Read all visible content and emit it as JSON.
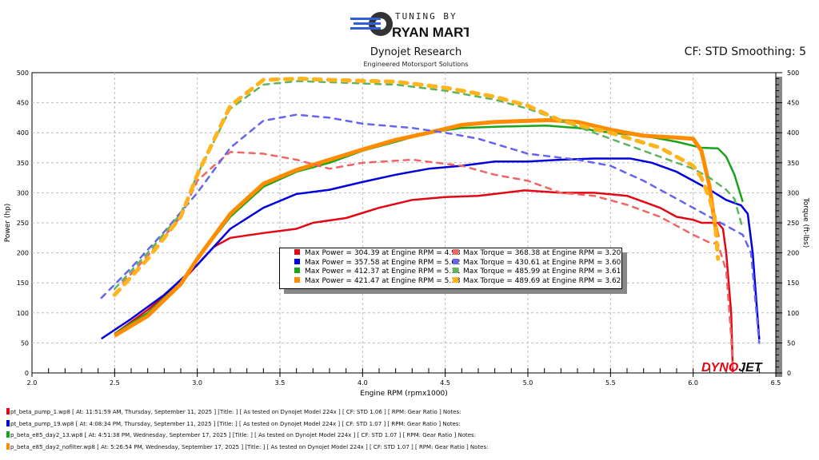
{
  "header": {
    "logo_line1": "TUNING BY",
    "logo_line2": "RYAN MARTIN",
    "company": "Dynojet Research",
    "tagline": "Engineered Motorsport Solutions",
    "settings": "CF: STD Smoothing: 5",
    "watermark": "DYNOJET"
  },
  "chart_data": {
    "type": "line",
    "xlabel": "Engine RPM (rpmx1000)",
    "ylabel": "Power (hp)",
    "y2label": "Torque (ft-lbs)",
    "xlim": [
      2.0,
      6.5
    ],
    "ylim": [
      0,
      500
    ],
    "y2lim": [
      0,
      500
    ],
    "xticks": [
      "2.0",
      "2.5",
      "3.0",
      "3.5",
      "4.0",
      "4.5",
      "5.0",
      "5.5",
      "6.0",
      "6.5"
    ],
    "yticks": [
      "0",
      "50",
      "100",
      "150",
      "200",
      "250",
      "300",
      "350",
      "400",
      "450",
      "500"
    ],
    "grid": true,
    "legend_position": "center",
    "series": [
      {
        "kind": "power",
        "color": "#e30613",
        "x": [
          2.5,
          2.7,
          2.9,
          3.0,
          3.1,
          3.2,
          3.4,
          3.6,
          3.7,
          3.9,
          4.1,
          4.3,
          4.5,
          4.7,
          4.98,
          5.2,
          5.4,
          5.6,
          5.7,
          5.8,
          5.9,
          6.0,
          6.05,
          6.1,
          6.15,
          6.18,
          6.2,
          6.23,
          6.24
        ],
        "y": [
          65,
          105,
          150,
          180,
          210,
          225,
          233,
          240,
          250,
          258,
          275,
          288,
          293,
          295,
          304,
          300,
          300,
          295,
          285,
          275,
          260,
          255,
          250,
          250,
          250,
          240,
          200,
          100,
          0
        ]
      },
      {
        "kind": "power",
        "color": "#0000dd",
        "x": [
          2.42,
          2.6,
          2.8,
          3.0,
          3.2,
          3.4,
          3.6,
          3.8,
          4.0,
          4.2,
          4.4,
          4.6,
          4.8,
          5.0,
          5.2,
          5.4,
          5.62,
          5.75,
          5.9,
          6.0,
          6.1,
          6.2,
          6.29,
          6.33,
          6.36,
          6.4
        ],
        "y": [
          57,
          90,
          130,
          180,
          240,
          275,
          298,
          305,
          318,
          330,
          340,
          345,
          352,
          352,
          355,
          357,
          357,
          350,
          335,
          320,
          305,
          288,
          279,
          265,
          200,
          56
        ]
      },
      {
        "kind": "power",
        "color": "#19a519",
        "x": [
          2.5,
          2.7,
          2.9,
          3.0,
          3.2,
          3.4,
          3.6,
          3.8,
          4.0,
          4.2,
          4.4,
          4.6,
          4.8,
          5.11,
          5.3,
          5.5,
          5.7,
          5.9,
          6.05,
          6.15,
          6.2,
          6.25,
          6.3
        ],
        "y": [
          65,
          100,
          150,
          190,
          260,
          310,
          335,
          350,
          370,
          385,
          400,
          408,
          410,
          412,
          408,
          400,
          395,
          385,
          375,
          374,
          360,
          330,
          285
        ]
      },
      {
        "kind": "power",
        "color": "#ff8c00",
        "x": [
          2.5,
          2.7,
          2.9,
          3.0,
          3.2,
          3.4,
          3.6,
          3.8,
          4.0,
          4.2,
          4.4,
          4.6,
          4.8,
          5.13,
          5.3,
          5.5,
          5.7,
          5.9,
          6.0,
          6.05,
          6.1,
          6.13,
          6.15
        ],
        "y": [
          62,
          95,
          148,
          190,
          265,
          315,
          338,
          355,
          372,
          388,
          400,
          413,
          418,
          421,
          418,
          405,
          395,
          392,
          390,
          370,
          310,
          250,
          226
        ]
      },
      {
        "kind": "torque",
        "color": "#f06464",
        "x": [
          2.55,
          2.7,
          2.9,
          3.0,
          3.1,
          3.2,
          3.4,
          3.6,
          3.8,
          4.0,
          4.3,
          4.6,
          4.8,
          5.0,
          5.2,
          5.4,
          5.6,
          5.8,
          6.0,
          6.1,
          6.15,
          6.2,
          6.23,
          6.24
        ],
        "y": [
          150,
          195,
          260,
          320,
          345,
          368,
          365,
          355,
          340,
          350,
          355,
          345,
          330,
          320,
          300,
          295,
          280,
          260,
          230,
          217,
          215,
          170,
          60,
          0
        ]
      },
      {
        "kind": "torque",
        "color": "#6464f0",
        "x": [
          2.42,
          2.6,
          2.8,
          3.0,
          3.2,
          3.4,
          3.6,
          3.8,
          4.0,
          4.3,
          4.5,
          4.7,
          5.0,
          5.3,
          5.5,
          5.7,
          5.9,
          6.1,
          6.3,
          6.35,
          6.4
        ],
        "y": [
          125,
          175,
          235,
          300,
          375,
          420,
          430,
          425,
          415,
          408,
          400,
          390,
          365,
          355,
          345,
          320,
          290,
          260,
          230,
          200,
          50
        ]
      },
      {
        "kind": "torque",
        "color": "#5fb45f",
        "x": [
          2.5,
          2.7,
          2.9,
          3.0,
          3.2,
          3.4,
          3.61,
          3.8,
          4.2,
          4.5,
          4.8,
          5.0,
          5.3,
          5.5,
          5.8,
          6.0,
          6.1,
          6.2,
          6.25,
          6.3
        ],
        "y": [
          140,
          200,
          265,
          330,
          440,
          480,
          486,
          484,
          480,
          470,
          455,
          440,
          410,
          390,
          360,
          340,
          325,
          305,
          290,
          240
        ]
      },
      {
        "kind": "torque",
        "color": "#ffb41e",
        "x": [
          2.5,
          2.7,
          2.9,
          3.0,
          3.2,
          3.4,
          3.62,
          3.8,
          4.2,
          4.5,
          4.8,
          5.0,
          5.2,
          5.5,
          5.8,
          6.0,
          6.05,
          6.1,
          6.13,
          6.15
        ],
        "y": [
          130,
          190,
          260,
          330,
          445,
          488,
          490,
          488,
          485,
          475,
          460,
          445,
          420,
          400,
          375,
          345,
          325,
          290,
          260,
          190
        ]
      }
    ],
    "legend": [
      {
        "color": "#e30613",
        "text": "Max Power = 304.39 at Engine RPM = 4.98"
      },
      {
        "color": "#0000dd",
        "text": "Max Power = 357.58 at Engine RPM = 5.62"
      },
      {
        "color": "#19a519",
        "text": "Max Power = 412.37 at Engine RPM = 5.11"
      },
      {
        "color": "#ff8c00",
        "text": "Max Power = 421.47 at Engine RPM = 5.13"
      },
      {
        "color": "#f06464",
        "text": "Max Torque = 368.38 at Engine RPM = 3.20"
      },
      {
        "color": "#6464f0",
        "text": "Max Torque = 430.61 at Engine RPM = 3.60"
      },
      {
        "color": "#5fb45f",
        "text": "Max Torque = 485.99 at Engine RPM = 3.61"
      },
      {
        "color": "#ffb41e",
        "text": "Max Torque = 489.69 at Engine RPM = 3.62"
      }
    ]
  },
  "runs": [
    {
      "color": "#e30613",
      "text": "pt_beta_pump_1.wp8 [ At:  11:51:59 AM, Thursday, September 11, 2025 ] [Title: ]  [ As tested on Dynojet Model 224x ] [ CF: STD 1.06 ] [ RPM: Gear Ratio ] Notes:"
    },
    {
      "color": "#0000dd",
      "text": "pt_beta_pump_19.wp8 [ At:  4:08:34 PM, Thursday, September 11, 2025 ] [Title: ]  [ As tested on Dynojet Model 224x ] [ CF: STD 1.07 ] [ RPM: Gear Ratio ] Notes:"
    },
    {
      "color": "#19a519",
      "text": "p_beta_e85_day2_13.wp8 [ At:  4:51:38 PM, Wednesday, September 17, 2025 ] [Title: ]  [ As tested on Dynojet Model 224x ] [ CF: STD 1.07 ] [ RPM: Gear Ratio ] Notes:"
    },
    {
      "color": "#ff8c00",
      "text": "p_beta_e85_day2_nofilter.wp8 [ At:  5:26:54 PM, Wednesday, September 17, 2025 ] [Title: ]  [ As tested on Dynojet Model 224x ] [ CF: STD 1.07 ] [ RPM: Gear Ratio ] Notes:"
    }
  ]
}
